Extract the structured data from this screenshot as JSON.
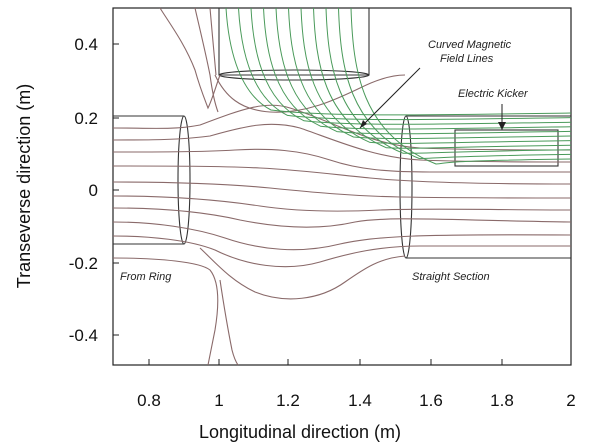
{
  "axes": {
    "xlabel": "Longitudinal direction (m)",
    "ylabel": "Transeverse direction (m)",
    "xlim": [
      0.7,
      2.0
    ],
    "ylim": [
      -0.5,
      0.5
    ],
    "x_ticks": [
      "0.8",
      "1",
      "1.2",
      "1.4",
      "1.6",
      "1.8",
      "2"
    ],
    "y_ticks": [
      "0.4",
      "0.2",
      "0",
      "-0.2",
      "-0.4"
    ]
  },
  "annotations": {
    "from_ring": "From Ring",
    "straight_section": "Straight Section",
    "electric_kicker": "Electric Kicker",
    "curved_field_line1": "Curved Magnetic",
    "curved_field_line2": "Field Lines"
  },
  "colors": {
    "gray_field_line": "#8a6a6a",
    "green_field_line": "#4a9a5a",
    "frame": "#222222"
  }
}
